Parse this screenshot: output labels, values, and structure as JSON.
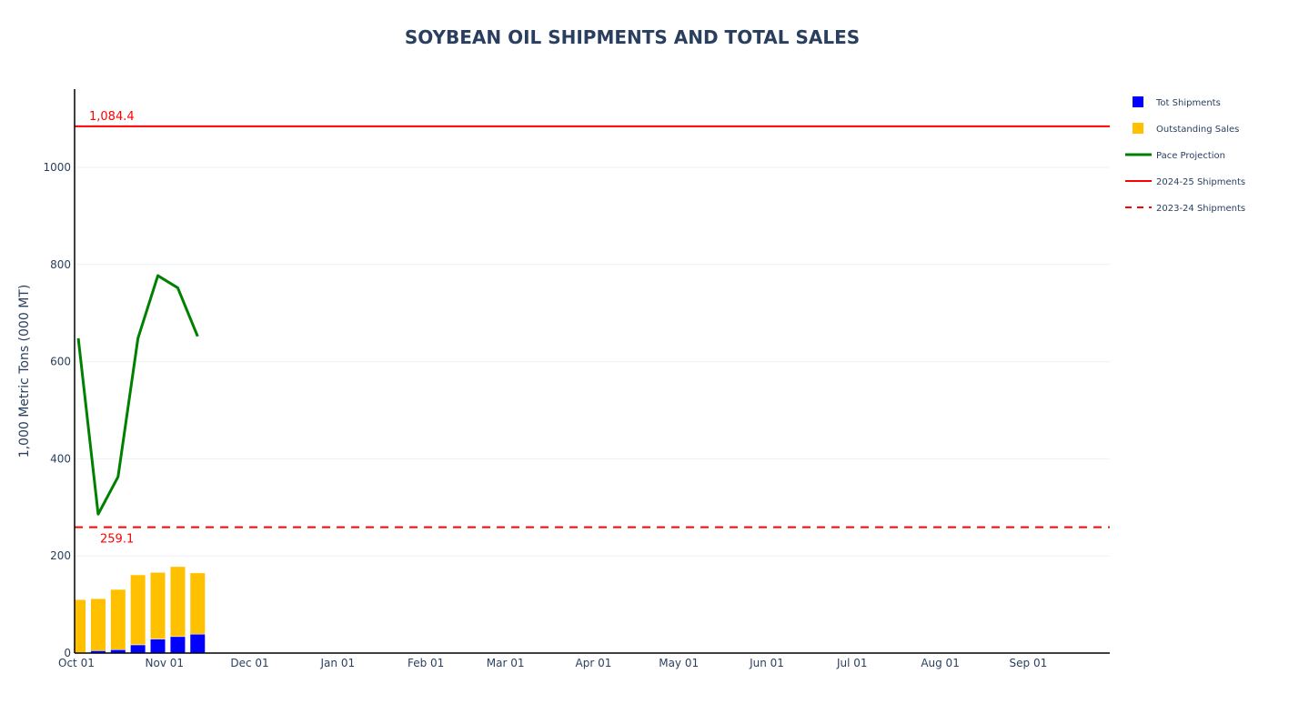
{
  "chart_data": {
    "type": "bar",
    "title": "SOYBEAN OIL SHIPMENTS AND TOTAL SALES",
    "xlabel": "",
    "ylabel": "1,000 Metric Tons (000 MT)",
    "barmode": "stack",
    "x": [
      "2024-10-02",
      "2024-10-09",
      "2024-10-16",
      "2024-10-23",
      "2024-10-30",
      "2024-11-06",
      "2024-11-13"
    ],
    "xlim": [
      "2024-10-01",
      "2025-09-30"
    ],
    "ylim": [
      0,
      1161
    ],
    "grid": true,
    "legend_placement": "right",
    "xticks": [
      {
        "date": "2024-10-01",
        "label": "Oct 01"
      },
      {
        "date": "2024-11-01",
        "label": "Nov 01"
      },
      {
        "date": "2024-12-01",
        "label": "Dec 01"
      },
      {
        "date": "2025-01-01",
        "label": "Jan 01"
      },
      {
        "date": "2025-02-01",
        "label": "Feb 01"
      },
      {
        "date": "2025-03-01",
        "label": "Mar 01"
      },
      {
        "date": "2025-04-01",
        "label": "Apr 01"
      },
      {
        "date": "2025-05-01",
        "label": "May 01"
      },
      {
        "date": "2025-06-01",
        "label": "Jun 01"
      },
      {
        "date": "2025-07-01",
        "label": "Jul 01"
      },
      {
        "date": "2025-08-01",
        "label": "Aug 01"
      },
      {
        "date": "2025-09-01",
        "label": "Sep 01"
      }
    ],
    "yticks": [
      0,
      200,
      400,
      600,
      800,
      1000
    ],
    "series": [
      {
        "name": "Tot Shipments",
        "type": "bar",
        "color": "#0000ff",
        "values": [
          1,
          5,
          7,
          17,
          29,
          34,
          39
        ]
      },
      {
        "name": "Outstanding Sales",
        "type": "bar",
        "color": "#ffc000",
        "values": [
          109,
          107,
          124,
          144,
          137,
          144,
          126
        ]
      },
      {
        "name": "Pace Projection",
        "type": "line",
        "color": "#008000",
        "values": [
          648,
          286,
          363,
          648,
          777,
          752,
          652
        ]
      },
      {
        "name": "2024-25 Shipments",
        "type": "hline",
        "color": "#ff0000",
        "value": 1084.4,
        "label": "1,084.4"
      },
      {
        "name": "2023-24 Shipments",
        "type": "hline-dash",
        "color": "#ff0000",
        "value": 259.1,
        "label": "259.1"
      }
    ]
  }
}
